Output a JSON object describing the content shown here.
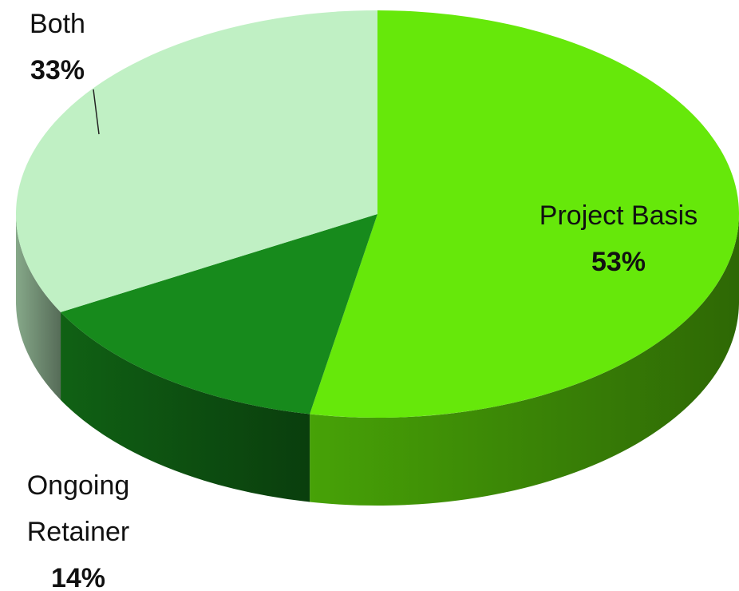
{
  "chart_data": {
    "type": "pie",
    "categories": [
      "Project Basis",
      "Ongoing Retainer",
      "Both"
    ],
    "values": [
      53,
      14,
      33
    ],
    "value_labels": [
      "53%",
      "14%",
      "33%"
    ],
    "colors": [
      "#66e80a",
      "#178a1c",
      "#c0f0c4"
    ]
  }
}
